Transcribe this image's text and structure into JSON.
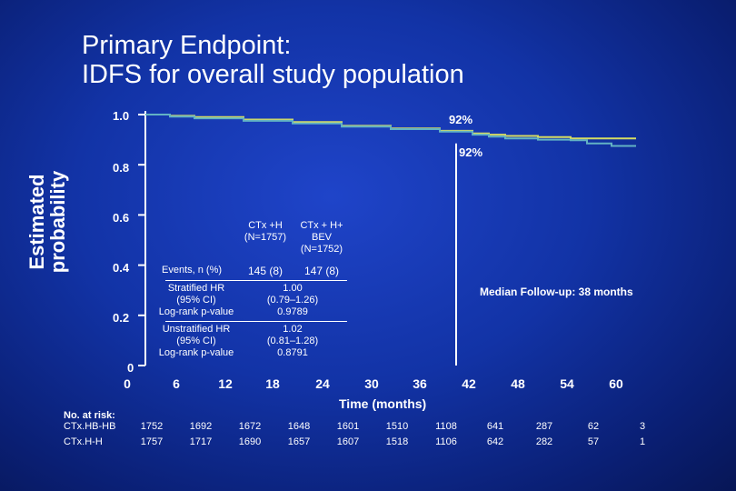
{
  "title": "Primary Endpoint:",
  "subtitle": "IDFS for overall study population",
  "colors": {
    "series1": "#d6dc63",
    "series2": "#62b2c4",
    "axis": "#ffffff"
  },
  "chart_data": {
    "type": "line",
    "ylabel": "Estimated probability",
    "xlabel": "Time (months)",
    "xlim": [
      0,
      60
    ],
    "ylim": [
      0,
      1.0
    ],
    "x_ticks": [
      "0",
      "6",
      "12",
      "18",
      "24",
      "30",
      "36",
      "42",
      "48",
      "54",
      "60"
    ],
    "y_ticks": [
      "0",
      "0.2",
      "0.4",
      "0.6",
      "0.8",
      "1.0"
    ],
    "series": [
      {
        "name": "CTx +H",
        "color": "#d6dc63",
        "x": [
          0,
          3,
          6,
          12,
          18,
          24,
          30,
          36,
          40,
          42,
          44,
          48,
          52,
          57,
          60
        ],
        "y": [
          1.0,
          0.995,
          0.99,
          0.98,
          0.97,
          0.955,
          0.945,
          0.935,
          0.925,
          0.92,
          0.915,
          0.91,
          0.905,
          0.905,
          0.905
        ]
      },
      {
        "name": "CTx + H+ BEV",
        "color": "#62b2c4",
        "x": [
          0,
          3,
          6,
          12,
          18,
          24,
          30,
          36,
          40,
          42,
          44,
          48,
          52,
          54,
          57,
          60
        ],
        "y": [
          1.0,
          0.992,
          0.985,
          0.975,
          0.965,
          0.952,
          0.942,
          0.932,
          0.92,
          0.912,
          0.905,
          0.9,
          0.898,
          0.885,
          0.875,
          0.875
        ]
      }
    ],
    "annotations": {
      "upper": "92%",
      "lower": "92%",
      "followup": "Median Follow-up: 38 months",
      "followup_month": 38
    },
    "table": {
      "col_headers": [
        "CTx +H\n(N=1757)",
        "CTx + H+\nBEV\n(N=1752)"
      ],
      "rows": [
        {
          "label": "Events, n (%)",
          "v1": "145 (8)",
          "v2": "147 (8)"
        },
        {
          "label": "Stratified HR\n(95% CI)\nLog-rank p-value",
          "v1": "1.00\n(0.79–1.26)\n0.9789"
        },
        {
          "label": "Unstratified HR\n(95% CI)\nLog-rank p-value",
          "v1": "1.02\n(0.81–1.28)\n0.8791"
        }
      ]
    },
    "risk_table": {
      "title": "No. at risk:",
      "rows": [
        {
          "label": "CTx.HB-HB",
          "values": [
            "1752",
            "1692",
            "1672",
            "1648",
            "1601",
            "1510",
            "1108",
            "641",
            "287",
            "62",
            "3"
          ]
        },
        {
          "label": "CTx.H-H",
          "values": [
            "1757",
            "1717",
            "1690",
            "1657",
            "1607",
            "1518",
            "1106",
            "642",
            "282",
            "57",
            "1"
          ]
        }
      ]
    }
  }
}
